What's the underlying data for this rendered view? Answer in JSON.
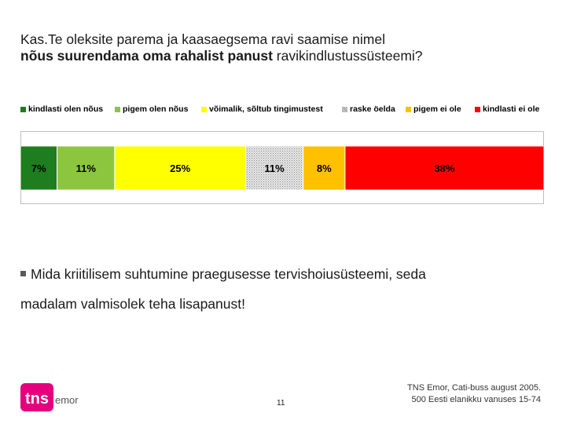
{
  "title": {
    "line1": "Kas.Te oleksite parema ja kaasaegsema ravi saamise nimel",
    "line2_bold": "nõus suurendama oma rahalist panust",
    "line2_rest": " ravikindlustussüsteemi?"
  },
  "legend": [
    {
      "label": "kindlasti olen nõus",
      "color": "#1e7d1e"
    },
    {
      "label": "pigem olen nõus",
      "color": "#8cc63f"
    },
    {
      "label": "võimalik, sõltub tingimustest",
      "color": "#ffff00"
    },
    {
      "label": "raske öelda",
      "color": "#c8c8c8"
    },
    {
      "label": "pigem ei ole",
      "color": "#ffc000"
    },
    {
      "label": "kindlasti ei ole",
      "color": "#ff0000"
    }
  ],
  "chart_data": {
    "type": "bar",
    "orientation": "horizontal-stacked-100",
    "categories": [
      ""
    ],
    "series": [
      {
        "name": "kindlasti olen nõus",
        "values": [
          7
        ],
        "label": "7%",
        "color": "#1e7d1e"
      },
      {
        "name": "pigem olen nõus",
        "values": [
          11
        ],
        "label": "11%",
        "color": "#8cc63f"
      },
      {
        "name": "võimalik, sõltub tingimustest",
        "values": [
          25
        ],
        "label": "25%",
        "color": "#ffff00"
      },
      {
        "name": "raske öelda",
        "values": [
          11
        ],
        "label": "11%",
        "color": "#c8c8c8",
        "pattern": "dotted"
      },
      {
        "name": "pigem ei ole",
        "values": [
          8
        ],
        "label": "8%",
        "color": "#ffc000"
      },
      {
        "name": "kindlasti ei ole",
        "values": [
          38
        ],
        "label": "38%",
        "color": "#ff0000"
      }
    ],
    "xlim": [
      0,
      100
    ],
    "legend_position": "top",
    "grid": false
  },
  "bullet": {
    "line1": "Mida kriitilisem suhtumine praegusesse tervishoiusüsteemi, seda",
    "line2": "madalam valmisolek teha lisapanust!"
  },
  "logo": {
    "word1": "tns",
    "word2": "emor",
    "color": "#e6007e"
  },
  "page_number": "11",
  "source": {
    "line1": "TNS Emor, Cati-buss august 2005.",
    "line2": "500 Eesti elanikku vanuses 15-74"
  }
}
